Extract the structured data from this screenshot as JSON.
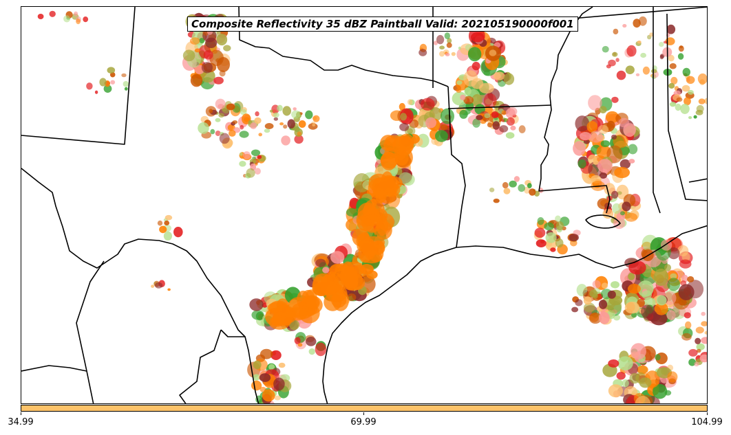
{
  "title": "Composite Reflectivity 35 dBZ Paintball Valid: 202105190000f001",
  "colorbar": {
    "color": "#fdc36a",
    "ticks": [
      "34.99",
      "69.99",
      "104.99"
    ]
  },
  "map": {
    "region": "South-central United States (Texas, Louisiana, Oklahoma, Arkansas, Mississippi, Alabama, northern Mexico)",
    "paintball_colors": [
      "#ff7f00",
      "#e31a1c",
      "#33a02c",
      "#b2df8a",
      "#fdbf6f",
      "#fb9a99",
      "#a6a63a",
      "#8b2a2a",
      "#cc5500"
    ]
  }
}
